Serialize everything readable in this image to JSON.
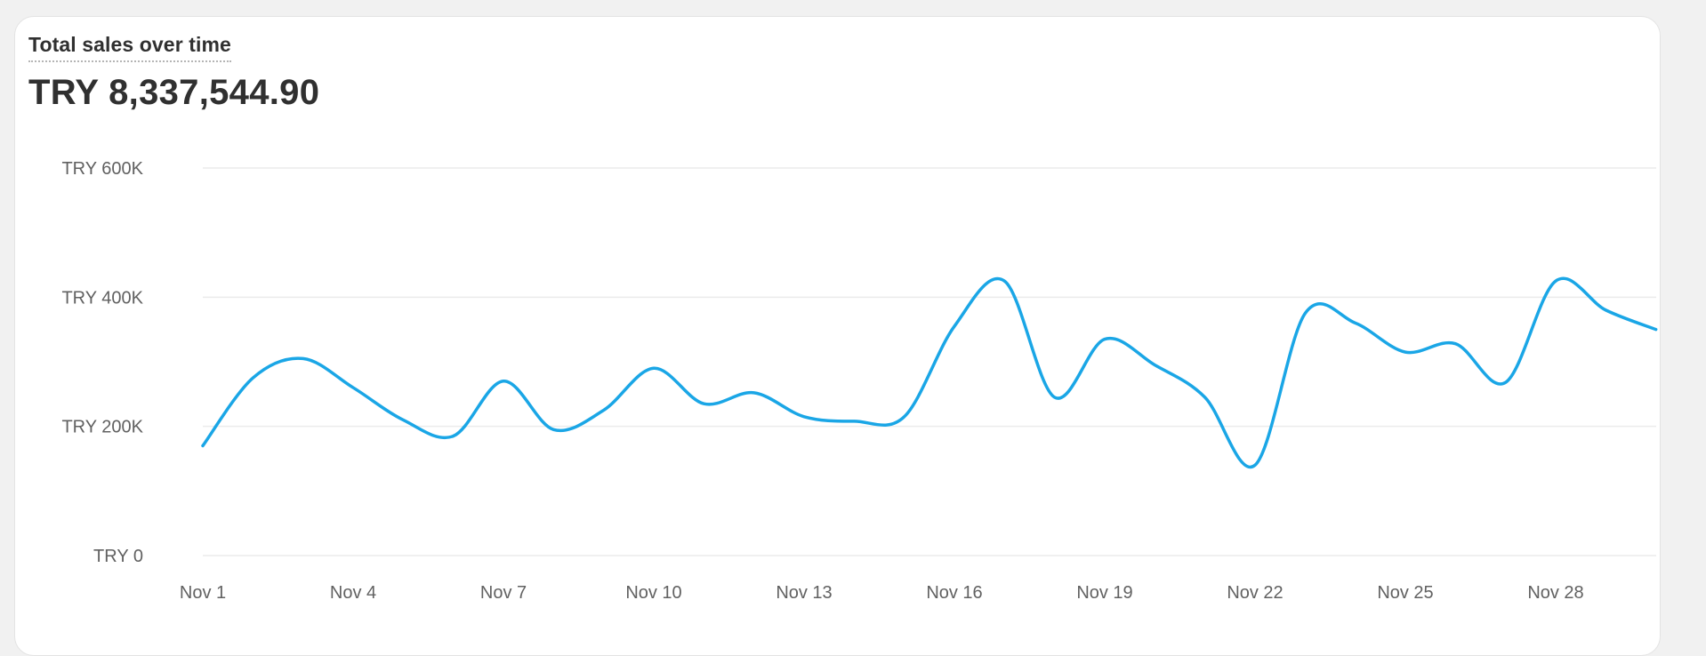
{
  "header": {
    "title": "Total sales over time",
    "total": "TRY 8,337,544.90"
  },
  "colors": {
    "line": "#1aa6e6",
    "grid": "#ebebeb",
    "axis_text": "#616161"
  },
  "chart_data": {
    "type": "line",
    "title": "Total sales over time",
    "xlabel": "",
    "ylabel": "",
    "ylim": [
      0,
      600000
    ],
    "grid": true,
    "y_ticks": [
      {
        "value": 0,
        "label": "TRY 0"
      },
      {
        "value": 200000,
        "label": "TRY 200K"
      },
      {
        "value": 400000,
        "label": "TRY 400K"
      },
      {
        "value": 600000,
        "label": "TRY 600K"
      }
    ],
    "x_tick_labels": [
      "Nov 1",
      "Nov 4",
      "Nov 7",
      "Nov 10",
      "Nov 13",
      "Nov 16",
      "Nov 19",
      "Nov 22",
      "Nov 25",
      "Nov 28"
    ],
    "series": [
      {
        "x": [
          "Nov 1",
          "Nov 2",
          "Nov 3",
          "Nov 4",
          "Nov 5",
          "Nov 6",
          "Nov 7",
          "Nov 8",
          "Nov 9",
          "Nov 10",
          "Nov 11",
          "Nov 12",
          "Nov 13",
          "Nov 14",
          "Nov 15",
          "Nov 16",
          "Nov 17",
          "Nov 18",
          "Nov 19",
          "Nov 20",
          "Nov 21",
          "Nov 22",
          "Nov 23",
          "Nov 24",
          "Nov 25",
          "Nov 26",
          "Nov 27",
          "Nov 28",
          "Nov 29",
          "Nov 30"
        ],
        "values": [
          170000,
          275000,
          305000,
          260000,
          210000,
          185000,
          270000,
          195000,
          225000,
          290000,
          235000,
          252000,
          215000,
          208000,
          215000,
          355000,
          425000,
          245000,
          335000,
          295000,
          245000,
          140000,
          375000,
          360000,
          315000,
          328000,
          268000,
          425000,
          380000,
          350000
        ]
      }
    ]
  }
}
